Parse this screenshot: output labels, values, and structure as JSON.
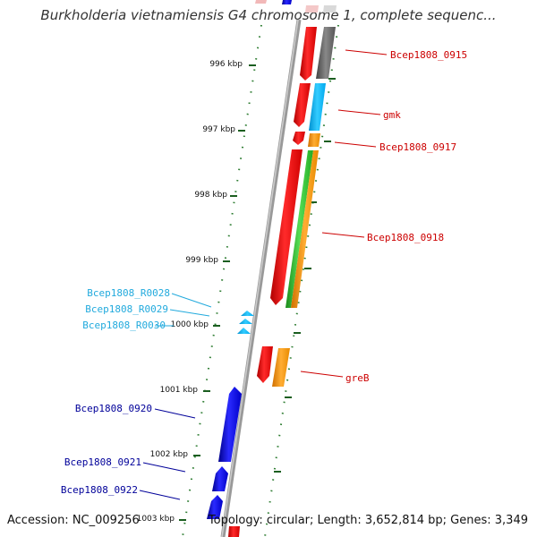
{
  "title": "Burkholderia vietnamiensis G4 chromosome 1, complete sequenc...",
  "footer": {
    "accession": "Accession: NC_009256",
    "summary": "Topology: circular; Length: 3,652,814 bp; Genes: 3,349"
  },
  "colors": {
    "backbone": "#888888",
    "tick": "#2e7d32",
    "red_gene": "#ff0000",
    "blue_gene": "#0000ff",
    "cyan_gene": "#00b7ff",
    "orange_gene": "#ff9900",
    "green_gene": "#33cc33",
    "gray_gene": "#666666",
    "red_label": "#cc0000",
    "blue_label": "#000099",
    "cyan_label": "#22aadd"
  },
  "ticks": [
    "996 kbp",
    "997 kbp",
    "998 kbp",
    "999 kbp",
    "1000 kbp",
    "1001 kbp",
    "1002 kbp",
    "1003 kbp"
  ],
  "gene_labels": {
    "g0915": "Bcep1808_0915",
    "gmk": "gmk",
    "g0917": "Bcep1808_0917",
    "g0918": "Bcep1808_0918",
    "r0028": "Bcep1808_R0028",
    "r0029": "Bcep1808_R0029",
    "r0030": "Bcep1808_R0030",
    "greB": "greB",
    "g0920": "Bcep1808_0920",
    "g0921": "Bcep1808_0921",
    "g0922": "Bcep1808_0922"
  }
}
